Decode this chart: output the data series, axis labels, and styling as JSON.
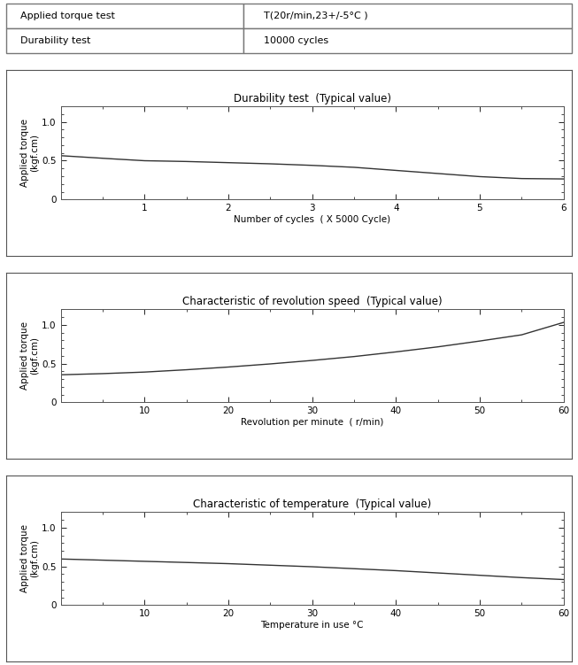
{
  "table_rows": [
    [
      "Applied torque test",
      "T(20r/min,23+/-5°C )"
    ],
    [
      "Durability test",
      "10000 cycles"
    ]
  ],
  "chart1": {
    "title": "Durability test  (Typical value)",
    "xlabel": "Number of cycles  ( X 5000 Cycle)",
    "ylabel": "Applied torque\n(kgf.cm)",
    "xlim": [
      0,
      6
    ],
    "ylim": [
      0,
      1.2
    ],
    "xticks": [
      1,
      2,
      3,
      4,
      5,
      6
    ],
    "yticks": [
      0,
      0.5,
      1.0
    ],
    "x": [
      0.0,
      0.3,
      0.6,
      1.0,
      1.5,
      2.0,
      2.5,
      3.0,
      3.5,
      4.0,
      4.5,
      5.0,
      5.5,
      6.0
    ],
    "y": [
      0.565,
      0.545,
      0.525,
      0.5,
      0.49,
      0.475,
      0.46,
      0.44,
      0.415,
      0.375,
      0.335,
      0.295,
      0.27,
      0.265
    ]
  },
  "chart2": {
    "title": "Characteristic of revolution speed  (Typical value)",
    "xlabel": "Revolution per minute  ( r/min)",
    "ylabel": "Applied torque\n(kgf.cm)",
    "xlim": [
      0,
      60
    ],
    "ylim": [
      0,
      1.2
    ],
    "xticks": [
      10,
      20,
      30,
      40,
      50,
      60
    ],
    "yticks": [
      0,
      0.5,
      1.0
    ],
    "x": [
      0,
      5,
      10,
      15,
      20,
      25,
      30,
      35,
      40,
      45,
      50,
      55,
      60
    ],
    "y": [
      0.355,
      0.37,
      0.39,
      0.42,
      0.455,
      0.495,
      0.54,
      0.59,
      0.65,
      0.715,
      0.79,
      0.87,
      1.03
    ]
  },
  "chart3": {
    "title": "Characteristic of temperature  (Typical value)",
    "xlabel": "Temperature in use °C",
    "ylabel": "Applied torque\n(kgf.cm)",
    "xlim": [
      0,
      60
    ],
    "ylim": [
      0,
      1.2
    ],
    "xticks": [
      10,
      20,
      30,
      40,
      50,
      60
    ],
    "yticks": [
      0,
      0.5,
      1.0
    ],
    "x": [
      0,
      5,
      10,
      15,
      20,
      25,
      30,
      35,
      40,
      45,
      50,
      55,
      60
    ],
    "y": [
      0.595,
      0.58,
      0.565,
      0.55,
      0.535,
      0.515,
      0.495,
      0.47,
      0.445,
      0.415,
      0.385,
      0.355,
      0.33
    ]
  },
  "line_color": "#333333",
  "line_width": 1.0,
  "bg_color": "#ffffff",
  "text_color": "#000000",
  "font_size": 7.5,
  "title_font_size": 8.5,
  "minor_ytick_interval": 0.1,
  "minor_xtick_interval_chart1": 0.5,
  "minor_xtick_interval_chart23": 5
}
